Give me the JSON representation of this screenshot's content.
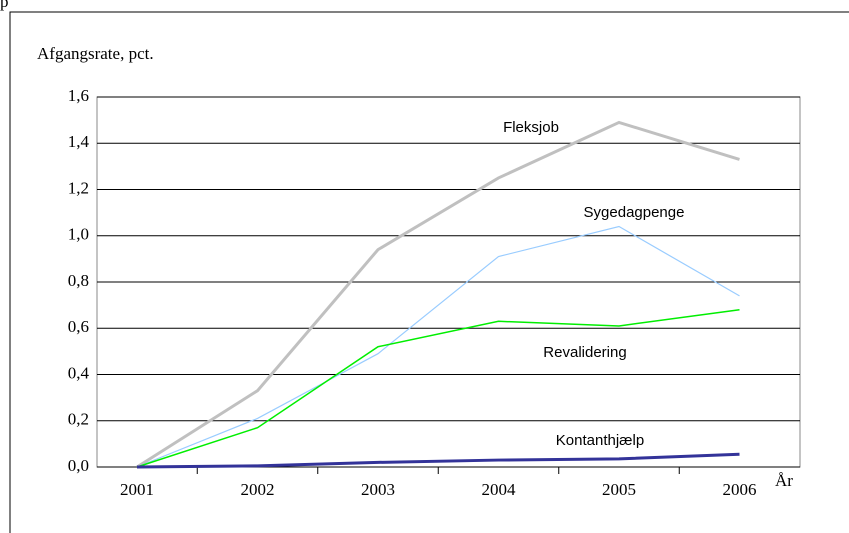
{
  "page_fragment": "p",
  "chart_data": {
    "type": "line",
    "y_axis_label": "Afgangsrate, pct.",
    "x_axis_label": "År",
    "categories": [
      "2001",
      "2002",
      "2003",
      "2004",
      "2005",
      "2006"
    ],
    "series": [
      {
        "name": "Fleksjob",
        "color": "#c0c0c0",
        "values": [
          0,
          0.33,
          0.94,
          1.25,
          1.49,
          1.33
        ]
      },
      {
        "name": "Sygedagpenge",
        "color": "#99ccff",
        "values": [
          0,
          0.21,
          0.49,
          0.91,
          1.04,
          0.74
        ]
      },
      {
        "name": "Revalidering",
        "color": "#00ee00",
        "values": [
          0,
          0.17,
          0.52,
          0.63,
          0.61,
          0.68
        ]
      },
      {
        "name": "Kontanthjælp",
        "color": "#333399",
        "values": [
          0,
          0.005,
          0.02,
          0.03,
          0.035,
          0.055
        ]
      }
    ],
    "ylim": [
      0,
      1.6
    ],
    "yticks": [
      {
        "value": 0,
        "label": "0,0"
      },
      {
        "value": 0.2,
        "label": "0,2"
      },
      {
        "value": 0.4,
        "label": "0,4"
      },
      {
        "value": 0.6,
        "label": "0,6"
      },
      {
        "value": 0.8,
        "label": "0,8"
      },
      {
        "value": 1.0,
        "label": "1,0"
      },
      {
        "value": 1.2,
        "label": "1,2"
      },
      {
        "value": 1.4,
        "label": "1,4"
      },
      {
        "value": 1.6,
        "label": "1,6"
      }
    ],
    "grid": true
  }
}
